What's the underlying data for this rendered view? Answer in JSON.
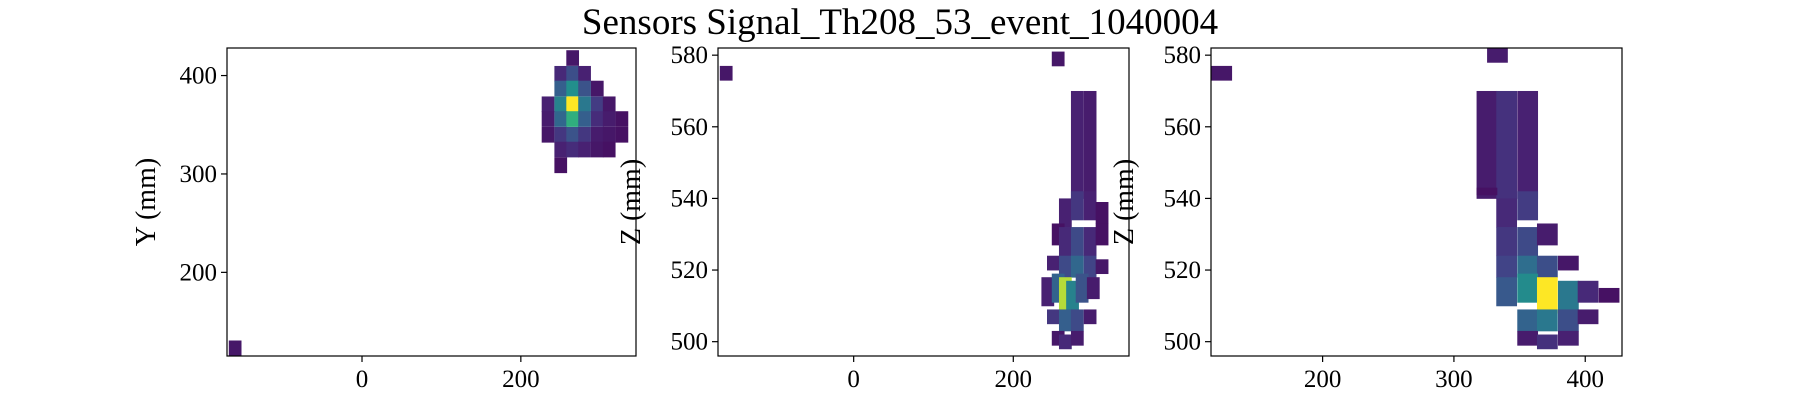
{
  "figure": {
    "title": "Sensors Signal_Th208_53_event_1040004"
  },
  "chart_data": [
    {
      "type": "heatmap",
      "title": "",
      "xlabel": "",
      "ylabel": "Y (mm)",
      "xlim": [
        -170,
        345
      ],
      "ylim": [
        115,
        428
      ],
      "xticks": [
        0,
        200
      ],
      "yticks": [
        200,
        300,
        400
      ],
      "bin_size": [
        15.5,
        15.5
      ],
      "cells": [
        [
          -160,
          123,
          0.08
        ],
        [
          265,
          418,
          0.08
        ],
        [
          250,
          402,
          0.15
        ],
        [
          265,
          402,
          0.3
        ],
        [
          280,
          402,
          0.12
        ],
        [
          250,
          387,
          0.38
        ],
        [
          265,
          387,
          0.62
        ],
        [
          280,
          387,
          0.32
        ],
        [
          296,
          387,
          0.08
        ],
        [
          234,
          371,
          0.12
        ],
        [
          250,
          371,
          0.55
        ],
        [
          265,
          371,
          1.0
        ],
        [
          280,
          371,
          0.5
        ],
        [
          296,
          371,
          0.22
        ],
        [
          311,
          371,
          0.08
        ],
        [
          234,
          356,
          0.1
        ],
        [
          250,
          356,
          0.42
        ],
        [
          265,
          356,
          0.72
        ],
        [
          280,
          356,
          0.38
        ],
        [
          296,
          356,
          0.16
        ],
        [
          311,
          356,
          0.1
        ],
        [
          327,
          356,
          0.06
        ],
        [
          234,
          340,
          0.08
        ],
        [
          250,
          340,
          0.2
        ],
        [
          265,
          340,
          0.32
        ],
        [
          280,
          340,
          0.2
        ],
        [
          296,
          340,
          0.1
        ],
        [
          311,
          340,
          0.08
        ],
        [
          327,
          340,
          0.06
        ],
        [
          250,
          325,
          0.12
        ],
        [
          265,
          325,
          0.16
        ],
        [
          280,
          325,
          0.12
        ],
        [
          296,
          325,
          0.08
        ],
        [
          311,
          325,
          0.06
        ],
        [
          250,
          309,
          0.06
        ]
      ]
    },
    {
      "type": "heatmap",
      "title": "",
      "xlabel": "",
      "ylabel": "Z (mm)",
      "xlim": [
        -170,
        345
      ],
      "ylim": [
        496,
        582
      ],
      "xticks": [
        0,
        200
      ],
      "yticks": [
        500,
        520,
        540,
        560,
        580
      ],
      "cells": [
        [
          -160,
          575,
          4,
          0.08
        ],
        [
          256,
          579,
          4,
          0.08
        ],
        [
          280,
          555,
          30,
          0.12
        ],
        [
          296,
          555,
          30,
          0.1
        ],
        [
          265,
          536,
          8,
          0.12
        ],
        [
          280,
          538,
          8,
          0.2
        ],
        [
          296,
          538,
          8,
          0.12
        ],
        [
          311,
          536,
          6,
          0.06
        ],
        [
          256,
          530,
          6,
          0.06
        ],
        [
          265,
          528,
          8,
          0.15
        ],
        [
          280,
          528,
          8,
          0.28
        ],
        [
          296,
          528,
          8,
          0.15
        ],
        [
          311,
          530,
          6,
          0.06
        ],
        [
          250,
          522,
          4,
          0.12
        ],
        [
          265,
          521,
          6,
          0.28
        ],
        [
          280,
          521,
          6,
          0.42
        ],
        [
          296,
          521,
          6,
          0.25
        ],
        [
          311,
          521,
          4,
          0.08
        ],
        [
          243,
          514,
          8,
          0.12
        ],
        [
          256,
          515,
          8,
          0.4
        ],
        [
          265,
          513,
          10,
          0.92
        ],
        [
          274,
          513,
          8,
          0.55
        ],
        [
          286,
          515,
          8,
          0.32
        ],
        [
          300,
          515,
          6,
          0.1
        ],
        [
          250,
          507,
          4,
          0.2
        ],
        [
          265,
          506,
          6,
          0.38
        ],
        [
          280,
          506,
          6,
          0.28
        ],
        [
          296,
          507,
          4,
          0.1
        ],
        [
          256,
          501,
          4,
          0.08
        ],
        [
          265,
          500,
          4,
          0.15
        ],
        [
          280,
          501,
          4,
          0.1
        ]
      ]
    },
    {
      "type": "heatmap",
      "title": "",
      "xlabel": "",
      "ylabel": "Z (mm)",
      "xlim": [
        115,
        428
      ],
      "ylim": [
        496,
        582
      ],
      "xticks": [
        200,
        300,
        400
      ],
      "yticks": [
        500,
        520,
        540,
        560,
        580
      ],
      "cells": [
        [
          123,
          575,
          4,
          0.08
        ],
        [
          333,
          580,
          4,
          0.1
        ],
        [
          325,
          555,
          30,
          0.1
        ],
        [
          340,
          555,
          30,
          0.18
        ],
        [
          356,
          555,
          30,
          0.12
        ],
        [
          340,
          536,
          8,
          0.15
        ],
        [
          356,
          538,
          8,
          0.22
        ],
        [
          325,
          542,
          2,
          0.06
        ],
        [
          340,
          528,
          8,
          0.2
        ],
        [
          356,
          528,
          8,
          0.28
        ],
        [
          371,
          530,
          6,
          0.1
        ],
        [
          340,
          521,
          6,
          0.25
        ],
        [
          356,
          521,
          6,
          0.45
        ],
        [
          371,
          521,
          6,
          0.3
        ],
        [
          387,
          522,
          4,
          0.08
        ],
        [
          340,
          514,
          8,
          0.35
        ],
        [
          356,
          515,
          8,
          0.6
        ],
        [
          371,
          513,
          10,
          1.0
        ],
        [
          387,
          513,
          8,
          0.5
        ],
        [
          402,
          514,
          6,
          0.15
        ],
        [
          418,
          513,
          4,
          0.06
        ],
        [
          356,
          506,
          6,
          0.4
        ],
        [
          371,
          506,
          6,
          0.5
        ],
        [
          387,
          506,
          6,
          0.3
        ],
        [
          402,
          507,
          4,
          0.1
        ],
        [
          356,
          501,
          4,
          0.1
        ],
        [
          371,
          500,
          4,
          0.18
        ],
        [
          387,
          501,
          4,
          0.12
        ]
      ]
    }
  ]
}
